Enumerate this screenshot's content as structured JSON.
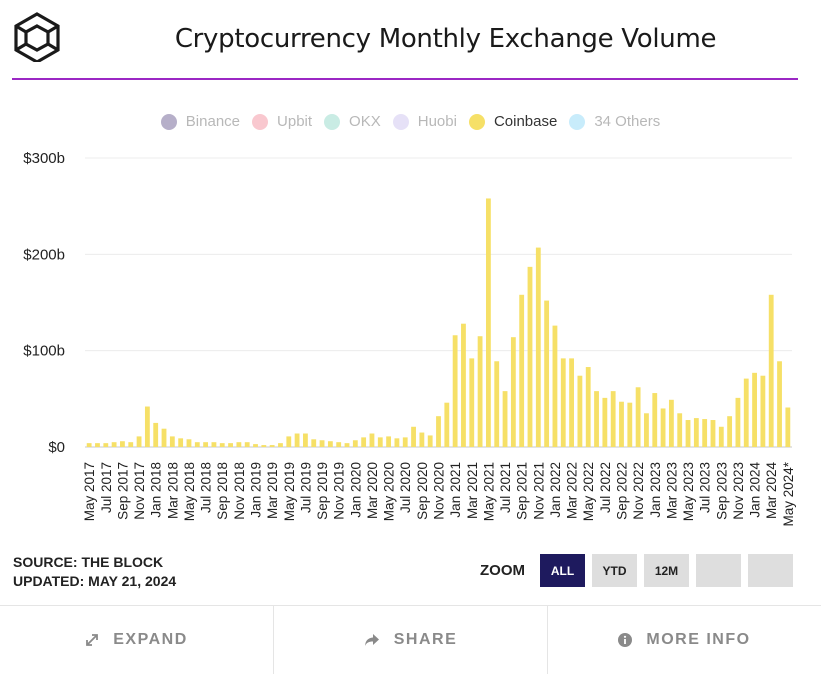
{
  "header": {
    "title": "Cryptocurrency Monthly Exchange Volume"
  },
  "legend": [
    {
      "label": "Binance",
      "color": "#b6afc9",
      "active": false
    },
    {
      "label": "Upbit",
      "color": "#f9c8cf",
      "active": false
    },
    {
      "label": "OKX",
      "color": "#c9ece4",
      "active": false
    },
    {
      "label": "Huobi",
      "color": "#e6e1f7",
      "active": false
    },
    {
      "label": "Coinbase",
      "color": "#f6e067",
      "active": true
    },
    {
      "label": "34 Others",
      "color": "#c8ecfb",
      "active": false
    }
  ],
  "chart_data": {
    "type": "bar",
    "series": [
      {
        "name": "Coinbase",
        "color": "#f6e067"
      }
    ],
    "y_ticks": [
      "$300b",
      "$200b",
      "$100b",
      "$0"
    ],
    "ylim": [
      0,
      300
    ],
    "grid": true,
    "legend_position": "top-center",
    "categories": [
      "May 2017",
      "Jun 2017",
      "Jul 2017",
      "Aug 2017",
      "Sep 2017",
      "Oct 2017",
      "Nov 2017",
      "Dec 2017",
      "Jan 2018",
      "Feb 2018",
      "Mar 2018",
      "Apr 2018",
      "May 2018",
      "Jun 2018",
      "Jul 2018",
      "Aug 2018",
      "Sep 2018",
      "Oct 2018",
      "Nov 2018",
      "Dec 2018",
      "Jan 2019",
      "Feb 2019",
      "Mar 2019",
      "Apr 2019",
      "May 2019",
      "Jun 2019",
      "Jul 2019",
      "Aug 2019",
      "Sep 2019",
      "Oct 2019",
      "Nov 2019",
      "Dec 2019",
      "Jan 2020",
      "Feb 2020",
      "Mar 2020",
      "Apr 2020",
      "May 2020",
      "Jun 2020",
      "Jul 2020",
      "Aug 2020",
      "Sep 2020",
      "Oct 2020",
      "Nov 2020",
      "Dec 2020",
      "Jan 2021",
      "Feb 2021",
      "Mar 2021",
      "Apr 2021",
      "May 2021",
      "Jun 2021",
      "Jul 2021",
      "Aug 2021",
      "Sep 2021",
      "Oct 2021",
      "Nov 2021",
      "Dec 2021",
      "Jan 2022",
      "Feb 2022",
      "Mar 2022",
      "Apr 2022",
      "May 2022",
      "Jun 2022",
      "Jul 2022",
      "Aug 2022",
      "Sep 2022",
      "Oct 2022",
      "Nov 2022",
      "Dec 2022",
      "Jan 2023",
      "Feb 2023",
      "Mar 2023",
      "Apr 2023",
      "May 2023",
      "Jun 2023",
      "Jul 2023",
      "Aug 2023",
      "Sep 2023",
      "Oct 2023",
      "Nov 2023",
      "Dec 2023",
      "Jan 2024",
      "Feb 2024",
      "Mar 2024",
      "Apr 2024",
      "May 2024*"
    ],
    "x_tick_labels": [
      "May 2017",
      "Jul 2017",
      "Sep 2017",
      "Nov 2017",
      "Jan 2018",
      "Mar 2018",
      "May 2018",
      "Jul 2018",
      "Sep 2018",
      "Nov 2018",
      "Jan 2019",
      "Mar 2019",
      "May 2019",
      "Jul 2019",
      "Sep 2019",
      "Nov 2019",
      "Jan 2020",
      "Mar 2020",
      "May 2020",
      "Jul 2020",
      "Sep 2020",
      "Nov 2020",
      "Jan 2021",
      "Mar 2021",
      "May 2021",
      "Jul 2021",
      "Sep 2021",
      "Nov 2021",
      "Jan 2022",
      "Mar 2022",
      "May 2022",
      "Jul 2022",
      "Sep 2022",
      "Nov 2022",
      "Jan 2023",
      "Mar 2023",
      "May 2023",
      "Jul 2023",
      "Sep 2023",
      "Nov 2023",
      "Jan 2024",
      "Mar 2024",
      "May 2024*"
    ],
    "values": [
      4,
      4,
      4,
      5,
      6,
      5,
      11,
      42,
      25,
      19,
      11,
      9,
      8,
      5,
      5,
      5,
      4,
      4,
      5,
      5,
      3,
      2,
      2,
      4,
      11,
      14,
      14,
      8,
      7,
      6,
      5,
      4,
      7,
      10,
      14,
      10,
      11,
      9,
      10,
      21,
      15,
      12,
      32,
      46,
      116,
      128,
      92,
      115,
      258,
      89,
      58,
      114,
      158,
      187,
      207,
      152,
      126,
      92,
      92,
      74,
      83,
      58,
      51,
      58,
      47,
      46,
      62,
      35,
      56,
      40,
      49,
      35,
      28,
      30,
      29,
      28,
      21,
      32,
      51,
      71,
      77,
      74,
      158,
      89,
      41
    ]
  },
  "footer": {
    "source": "SOURCE: THE BLOCK",
    "updated": "UPDATED: MAY 21, 2024"
  },
  "zoom": {
    "label": "ZOOM",
    "buttons": [
      "ALL",
      "YTD",
      "12M",
      "",
      ""
    ],
    "active": "ALL"
  },
  "actions": {
    "expand": "EXPAND",
    "share": "SHARE",
    "more_info": "MORE INFO"
  },
  "icons": {
    "logo": "the-block-cube-logo",
    "expand": "expand-arrows-icon",
    "share": "share-arrow-icon",
    "info": "info-circle-icon"
  }
}
